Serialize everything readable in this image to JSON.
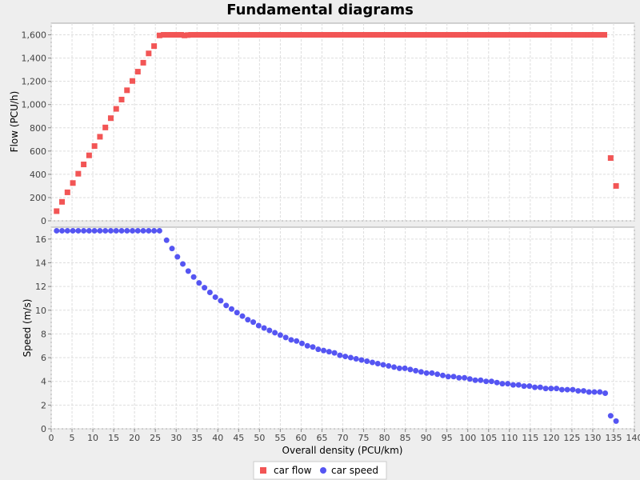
{
  "chart_data": {
    "type": "scatter",
    "title": "Fundamental diagrams",
    "xlabel": "Overall density (PCU/km)",
    "xlim": [
      0,
      140
    ],
    "x_ticks": [
      "0",
      "5",
      "10",
      "15",
      "20",
      "25",
      "30",
      "35",
      "40",
      "45",
      "50",
      "55",
      "60",
      "65",
      "70",
      "75",
      "80",
      "85",
      "90",
      "95",
      "100",
      "105",
      "110",
      "115",
      "120",
      "125",
      "130",
      "135",
      "140"
    ],
    "grid": true,
    "legend": "bottom-center",
    "panels": [
      {
        "ylabel": "Flow (PCU/h)",
        "ylim": [
          0,
          1700
        ],
        "y_ticks": [
          {
            "value": 0,
            "label": "0"
          },
          {
            "value": 200,
            "label": "200"
          },
          {
            "value": 400,
            "label": "400"
          },
          {
            "value": 600,
            "label": "600"
          },
          {
            "value": 800,
            "label": "800"
          },
          {
            "value": 1000,
            "label": "1,000"
          },
          {
            "value": 1200,
            "label": "1,200"
          },
          {
            "value": 1400,
            "label": "1,400"
          },
          {
            "value": 1600,
            "label": "1,600"
          }
        ]
      },
      {
        "ylabel": "Speed (m/s)",
        "ylim": [
          0,
          17
        ],
        "y_ticks": [
          {
            "value": 0,
            "label": "0"
          },
          {
            "value": 2,
            "label": "2"
          },
          {
            "value": 4,
            "label": "4"
          },
          {
            "value": 6,
            "label": "6"
          },
          {
            "value": 8,
            "label": "8"
          },
          {
            "value": 10,
            "label": "10"
          },
          {
            "value": 12,
            "label": "12"
          },
          {
            "value": 14,
            "label": "14"
          },
          {
            "value": 16,
            "label": "16"
          }
        ]
      }
    ],
    "series": [
      {
        "name": "car flow",
        "panel": 0,
        "marker": "square",
        "color": "#f25555",
        "x": [
          1.3,
          2.6,
          3.9,
          5.2,
          6.5,
          7.8,
          9.1,
          10.4,
          11.7,
          13.0,
          14.3,
          15.6,
          16.9,
          18.2,
          19.5,
          20.8,
          22.1,
          23.4,
          24.7,
          26.0,
          27.0,
          28.0,
          28.8,
          29.6,
          30.4,
          31.2,
          32.0,
          32.8,
          33.6,
          34.4,
          35.2,
          36.0,
          36.8,
          37.6,
          38.4,
          39.2,
          40.0,
          40.8,
          41.6,
          42.4,
          43.2,
          44.0,
          44.8,
          45.6,
          46.4,
          47.2,
          48.0,
          48.8,
          49.6,
          50.4,
          51.2,
          52.0,
          52.8,
          53.6,
          54.4,
          55.2,
          56.0,
          56.8,
          57.6,
          58.4,
          59.2,
          60.0,
          60.8,
          61.6,
          62.4,
          63.2,
          64.0,
          64.8,
          65.6,
          66.4,
          67.2,
          68.0,
          68.8,
          69.6,
          70.4,
          71.2,
          72.0,
          72.8,
          73.6,
          74.4,
          75.2,
          76.0,
          76.8,
          77.6,
          78.4,
          79.2,
          80.0,
          80.8,
          81.6,
          82.4,
          83.2,
          84.0,
          84.8,
          85.6,
          86.4,
          87.2,
          88.0,
          88.8,
          89.6,
          90.4,
          91.2,
          92.0,
          92.8,
          93.6,
          94.4,
          95.2,
          96.0,
          96.8,
          97.6,
          98.4,
          99.2,
          100.0,
          100.8,
          101.6,
          102.4,
          103.2,
          104.0,
          104.8,
          105.6,
          106.4,
          107.2,
          108.0,
          108.8,
          109.6,
          110.4,
          111.2,
          112.0,
          112.8,
          113.6,
          114.4,
          115.2,
          116.0,
          116.8,
          117.6,
          118.4,
          119.2,
          120.0,
          120.8,
          121.6,
          122.4,
          123.2,
          124.0,
          124.8,
          125.6,
          126.4,
          127.2,
          128.0,
          128.8,
          129.6,
          130.4,
          131.2,
          132.0,
          132.8,
          134.3,
          135.6
        ],
        "y": [
          83,
          163,
          245,
          325,
          405,
          485,
          563,
          643,
          723,
          803,
          883,
          963,
          1043,
          1123,
          1203,
          1283,
          1360,
          1440,
          1503,
          1595,
          1600,
          1600,
          1600,
          1600,
          1600,
          1600,
          1595,
          1598,
          1600,
          1600,
          1600,
          1600,
          1600,
          1600,
          1600,
          1600,
          1600,
          1600,
          1600,
          1600,
          1600,
          1600,
          1600,
          1600,
          1600,
          1600,
          1600,
          1600,
          1600,
          1600,
          1600,
          1600,
          1600,
          1600,
          1600,
          1600,
          1600,
          1600,
          1600,
          1600,
          1600,
          1600,
          1600,
          1600,
          1600,
          1600,
          1600,
          1600,
          1600,
          1600,
          1600,
          1600,
          1600,
          1600,
          1600,
          1600,
          1600,
          1600,
          1600,
          1600,
          1600,
          1600,
          1600,
          1600,
          1600,
          1600,
          1600,
          1600,
          1600,
          1600,
          1600,
          1600,
          1600,
          1600,
          1600,
          1600,
          1600,
          1600,
          1600,
          1600,
          1600,
          1600,
          1600,
          1600,
          1600,
          1600,
          1600,
          1600,
          1600,
          1600,
          1600,
          1600,
          1600,
          1600,
          1600,
          1600,
          1600,
          1600,
          1600,
          1600,
          1600,
          1600,
          1600,
          1600,
          1600,
          1600,
          1600,
          1600,
          1600,
          1600,
          1600,
          1600,
          1600,
          1600,
          1600,
          1600,
          1600,
          1600,
          1600,
          1600,
          1600,
          1600,
          1600,
          1600,
          1600,
          1600,
          1600,
          1600,
          1600,
          1600,
          1600,
          1600,
          1600,
          540,
          300
        ]
      },
      {
        "name": "car speed",
        "panel": 1,
        "marker": "circle",
        "color": "#5555f2",
        "x": [
          1.3,
          2.6,
          3.9,
          5.2,
          6.5,
          7.8,
          9.1,
          10.4,
          11.7,
          13.0,
          14.3,
          15.6,
          16.9,
          18.2,
          19.5,
          20.8,
          22.1,
          23.4,
          24.7,
          26.0,
          27.7,
          29.0,
          30.3,
          31.6,
          32.9,
          34.2,
          35.5,
          36.8,
          38.1,
          39.4,
          40.7,
          42.0,
          43.3,
          44.6,
          45.9,
          47.2,
          48.5,
          49.8,
          51.1,
          52.4,
          53.7,
          55.0,
          56.3,
          57.6,
          58.9,
          60.2,
          61.5,
          62.8,
          64.1,
          65.4,
          66.7,
          68.0,
          69.3,
          70.6,
          71.9,
          73.2,
          74.5,
          75.8,
          77.1,
          78.4,
          79.7,
          81.0,
          82.3,
          83.6,
          84.9,
          86.2,
          87.5,
          88.8,
          90.1,
          91.4,
          92.7,
          94.0,
          95.3,
          96.6,
          97.9,
          99.2,
          100.5,
          101.8,
          103.1,
          104.4,
          105.7,
          107.0,
          108.3,
          109.6,
          110.9,
          112.2,
          113.5,
          114.8,
          116.1,
          117.4,
          118.7,
          120.0,
          121.3,
          122.6,
          123.9,
          125.2,
          126.5,
          127.8,
          129.1,
          130.4,
          131.7,
          133.0,
          134.3,
          135.6
        ],
        "y": [
          16.7,
          16.7,
          16.7,
          16.7,
          16.7,
          16.7,
          16.7,
          16.7,
          16.7,
          16.7,
          16.7,
          16.7,
          16.7,
          16.7,
          16.7,
          16.7,
          16.7,
          16.7,
          16.7,
          16.7,
          15.9,
          15.2,
          14.5,
          13.9,
          13.3,
          12.8,
          12.3,
          11.9,
          11.5,
          11.1,
          10.8,
          10.4,
          10.1,
          9.8,
          9.5,
          9.2,
          9.0,
          8.7,
          8.5,
          8.3,
          8.1,
          7.9,
          7.7,
          7.5,
          7.4,
          7.2,
          7.0,
          6.9,
          6.7,
          6.6,
          6.5,
          6.4,
          6.2,
          6.1,
          6.0,
          5.9,
          5.8,
          5.7,
          5.6,
          5.5,
          5.4,
          5.3,
          5.2,
          5.1,
          5.1,
          5.0,
          4.9,
          4.8,
          4.7,
          4.7,
          4.6,
          4.5,
          4.4,
          4.4,
          4.3,
          4.3,
          4.2,
          4.1,
          4.1,
          4.0,
          4.0,
          3.9,
          3.8,
          3.8,
          3.7,
          3.7,
          3.6,
          3.6,
          3.5,
          3.5,
          3.4,
          3.4,
          3.4,
          3.3,
          3.3,
          3.3,
          3.2,
          3.2,
          3.1,
          3.1,
          3.1,
          3.0,
          1.1,
          0.65
        ]
      }
    ]
  }
}
